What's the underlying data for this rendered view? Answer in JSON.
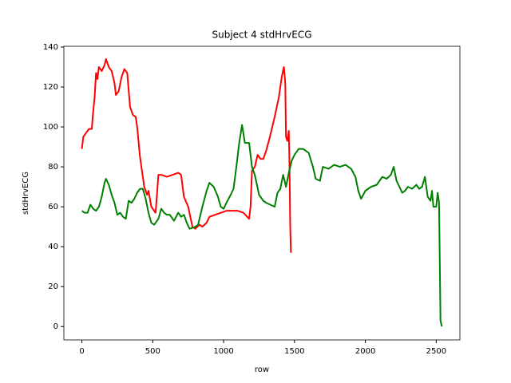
{
  "chart_data": {
    "type": "line",
    "title": "Subject 4 stdHrvECG",
    "xlabel": "row",
    "ylabel": "stdHrvECG",
    "xlim": [
      -127,
      2667
    ],
    "ylim": [
      -6.7,
      140.4
    ],
    "xticks": [
      0,
      500,
      1000,
      1500,
      2000,
      2500
    ],
    "yticks": [
      0,
      20,
      40,
      60,
      80,
      100,
      120,
      140
    ],
    "grid": false,
    "series": [
      {
        "color": "#ff0000",
        "x": [
          0,
          10,
          30,
          50,
          70,
          80,
          90,
          100,
          110,
          120,
          140,
          160,
          170,
          190,
          210,
          230,
          240,
          260,
          280,
          300,
          320,
          340,
          360,
          380,
          390,
          410,
          430,
          440,
          460,
          470,
          490,
          500,
          520,
          540,
          560,
          600,
          640,
          680,
          700,
          720,
          750,
          780,
          800,
          830,
          850,
          880,
          900,
          940,
          980,
          1020,
          1060,
          1100,
          1140,
          1180,
          1190,
          1200,
          1220,
          1240,
          1260,
          1280,
          1300,
          1330,
          1360,
          1390,
          1410,
          1425,
          1435,
          1440,
          1450,
          1460,
          1465,
          1470,
          1475
        ],
        "values": [
          89,
          95,
          97,
          99,
          99,
          108,
          115,
          127,
          124,
          130,
          128,
          131,
          134,
          130,
          128,
          122,
          116,
          118,
          125,
          129,
          127,
          110,
          106,
          105,
          100,
          85,
          75,
          70,
          66,
          68,
          60,
          59,
          57,
          76,
          76,
          75,
          76,
          77,
          76,
          65,
          60,
          50,
          49,
          51,
          50,
          52,
          55,
          56,
          57,
          58,
          58,
          58,
          57,
          54,
          60,
          78,
          80,
          86,
          84,
          84,
          88,
          96,
          105,
          115,
          125,
          130,
          122,
          95,
          93,
          98,
          80,
          50,
          37
        ]
      },
      {
        "color": "#008000",
        "x": [
          0,
          20,
          40,
          60,
          80,
          100,
          120,
          140,
          160,
          170,
          190,
          210,
          230,
          250,
          270,
          290,
          310,
          330,
          350,
          370,
          390,
          410,
          430,
          450,
          470,
          490,
          510,
          540,
          560,
          580,
          600,
          620,
          650,
          680,
          700,
          720,
          740,
          760,
          800,
          820,
          850,
          880,
          900,
          930,
          960,
          980,
          1000,
          1020,
          1050,
          1070,
          1090,
          1110,
          1130,
          1150,
          1180,
          1200,
          1220,
          1250,
          1280,
          1300,
          1330,
          1360,
          1380,
          1400,
          1420,
          1440,
          1460,
          1480,
          1500,
          1530,
          1560,
          1600,
          1630,
          1650,
          1680,
          1700,
          1740,
          1780,
          1820,
          1860,
          1900,
          1930,
          1950,
          1970,
          2000,
          2040,
          2080,
          2120,
          2150,
          2180,
          2200,
          2220,
          2240,
          2260,
          2280,
          2300,
          2330,
          2360,
          2380,
          2400,
          2420,
          2440,
          2460,
          2470,
          2480,
          2500,
          2510,
          2520,
          2525,
          2530,
          2540
        ],
        "values": [
          58,
          57,
          57,
          61,
          59,
          58,
          60,
          65,
          72,
          74,
          71,
          66,
          62,
          56,
          57,
          55,
          54,
          63,
          62,
          64,
          67,
          69,
          69,
          64,
          57,
          52,
          51,
          54,
          59,
          57,
          56,
          56,
          53,
          57,
          55,
          56,
          52,
          49,
          50,
          51,
          60,
          68,
          72,
          70,
          65,
          60,
          59,
          62,
          66,
          69,
          80,
          92,
          101,
          92,
          92,
          80,
          76,
          66,
          63,
          62,
          61,
          60,
          67,
          69,
          76,
          70,
          77,
          83,
          86,
          89,
          89,
          87,
          80,
          74,
          73,
          80,
          79,
          81,
          80,
          81,
          79,
          75,
          68,
          64,
          68,
          70,
          71,
          75,
          74,
          76,
          80,
          73,
          70,
          67,
          68,
          70,
          69,
          71,
          69,
          70,
          75,
          65,
          63,
          68,
          60,
          60,
          67,
          62,
          33,
          3,
          0
        ]
      }
    ]
  }
}
